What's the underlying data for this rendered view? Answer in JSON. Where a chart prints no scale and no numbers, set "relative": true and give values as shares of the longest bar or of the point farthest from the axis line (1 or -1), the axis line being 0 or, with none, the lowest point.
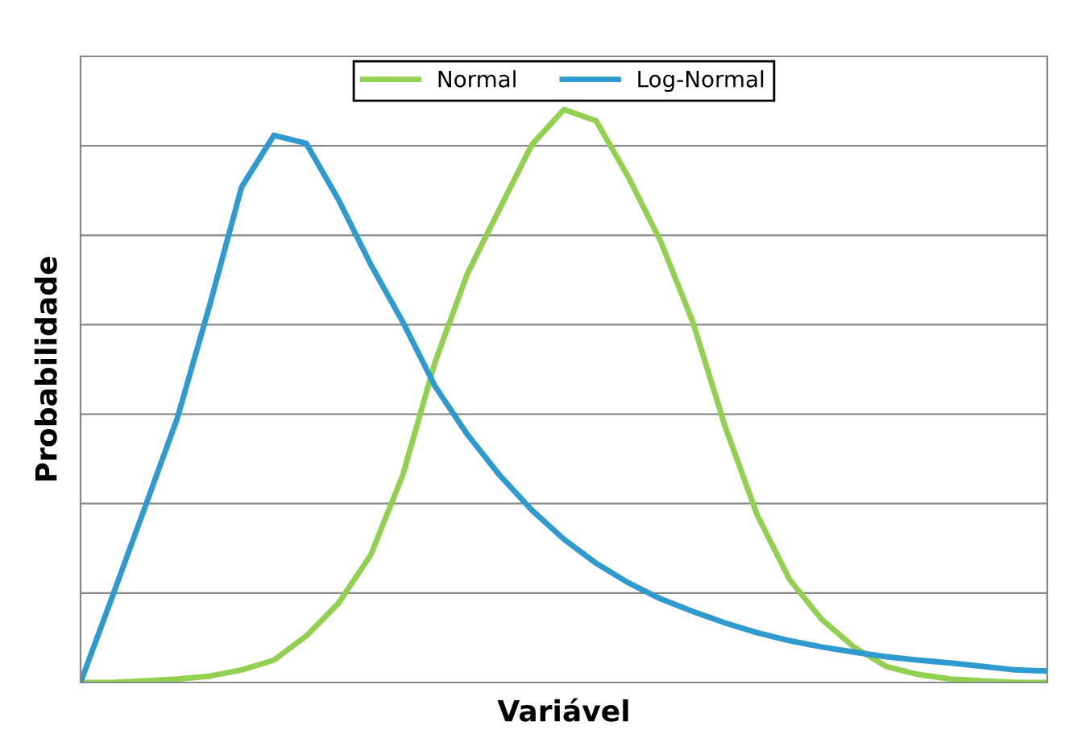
{
  "chart_data": {
    "type": "line",
    "xlabel": "Variável",
    "ylabel": "Probabilidade",
    "relative": true,
    "grid": "y",
    "legend": "top",
    "marker": "none",
    "line_style": "solid",
    "categories": [
      null,
      null,
      null,
      null,
      null,
      null,
      null,
      null,
      null,
      null,
      null,
      null,
      null,
      null,
      null,
      null,
      null,
      null,
      null,
      null,
      null,
      null,
      null,
      null,
      null,
      null,
      null,
      null,
      null,
      null,
      null
    ],
    "series": [
      {
        "name": "Normal",
        "color": "#92d050",
        "values": [
          0,
          0,
          0.003,
          0.006,
          0.011,
          0.022,
          0.039,
          0.081,
          0.138,
          0.222,
          0.362,
          0.559,
          0.713,
          0.826,
          0.938,
          1,
          0.98,
          0.882,
          0.77,
          0.629,
          0.447,
          0.292,
          0.18,
          0.11,
          0.062,
          0.028,
          0.014,
          0.006,
          0.003,
          0,
          0
        ]
      },
      {
        "name": "Log-Normal",
        "color": "#2e9ad0",
        "values": [
          0,
          0.152,
          0.306,
          0.461,
          0.657,
          0.865,
          0.955,
          0.941,
          0.843,
          0.73,
          0.629,
          0.517,
          0.433,
          0.362,
          0.301,
          0.25,
          0.208,
          0.174,
          0.146,
          0.124,
          0.104,
          0.087,
          0.073,
          0.062,
          0.053,
          0.045,
          0.039,
          0.034,
          0.028,
          0.022,
          0.02
        ]
      }
    ]
  }
}
